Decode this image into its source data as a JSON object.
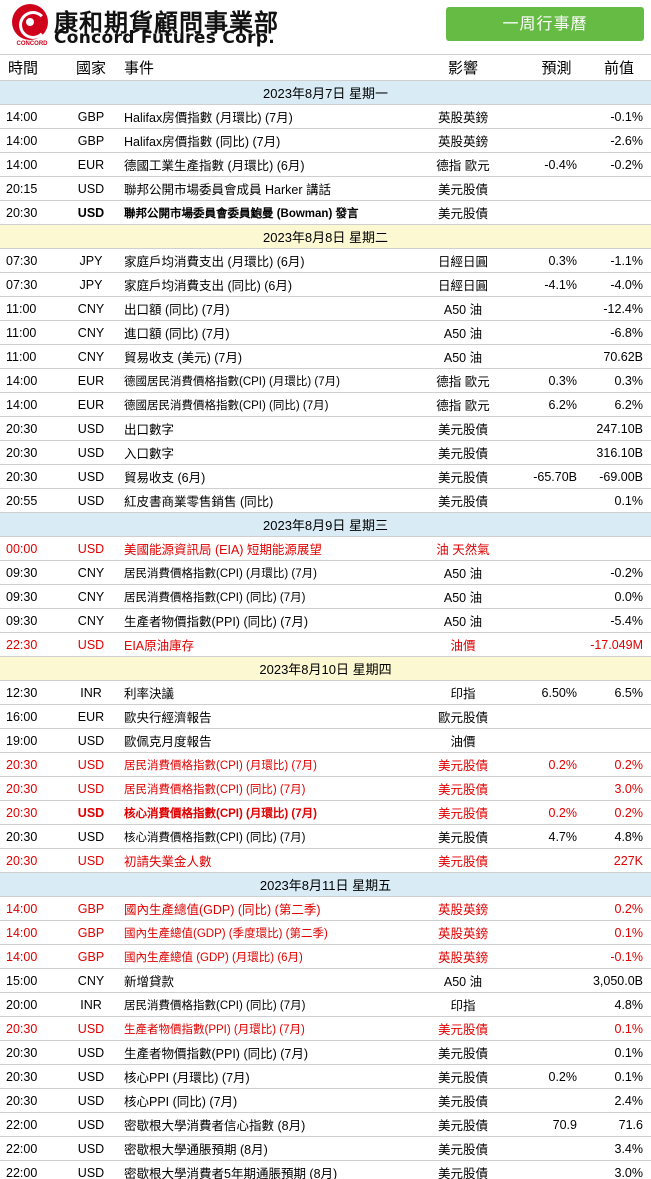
{
  "header": {
    "brand_zh": "康和期貨顧問事業部",
    "brand_en": "Concord Futures Corp.",
    "logo_text": "CONCORD",
    "week_button": "一周行事曆"
  },
  "columns": {
    "time": "時間",
    "country": "國家",
    "event": "事件",
    "impact": "影響",
    "forecast": "預測",
    "previous": "前值"
  },
  "days": [
    {
      "label": "2023年8月7日   星期一",
      "bg": "#d9ecf5",
      "rows": [
        {
          "time": "14:00",
          "country": "GBP",
          "event": "Halifax房價指數 (月環比) (7月)",
          "impact": "英股英鎊",
          "forecast": "",
          "previous": "-0.1%",
          "red": false,
          "bold": false
        },
        {
          "time": "14:00",
          "country": "GBP",
          "event": "Halifax房價指數 (同比) (7月)",
          "impact": "英股英鎊",
          "forecast": "",
          "previous": "-2.6%",
          "red": false,
          "bold": false
        },
        {
          "time": "14:00",
          "country": "EUR",
          "event": "德國工業生產指數 (月環比) (6月)",
          "impact": "德指 歐元",
          "forecast": "-0.4%",
          "previous": "-0.2%",
          "red": false,
          "bold": false
        },
        {
          "time": "20:15",
          "country": "USD",
          "event": "聯邦公開市場委員會成員 Harker 講話",
          "impact": "美元股債",
          "forecast": "",
          "previous": "",
          "red": false,
          "bold": false
        },
        {
          "time": "20:30",
          "country": "USD",
          "event": "聯邦公開市場委員會委員鮑曼 (Bowman) 發言",
          "impact": "美元股債",
          "forecast": "",
          "previous": "",
          "red": false,
          "bold": true
        }
      ]
    },
    {
      "label": "2023年8月8日   星期二",
      "bg": "#fbf8d2",
      "rows": [
        {
          "time": "07:30",
          "country": "JPY",
          "event": "家庭戶均消費支出 (月環比) (6月)",
          "impact": "日經日圓",
          "forecast": "0.3%",
          "previous": "-1.1%",
          "red": false,
          "bold": false
        },
        {
          "time": "07:30",
          "country": "JPY",
          "event": "家庭戶均消費支出 (同比) (6月)",
          "impact": "日經日圓",
          "forecast": "-4.1%",
          "previous": "-4.0%",
          "red": false,
          "bold": false
        },
        {
          "time": "11:00",
          "country": "CNY",
          "event": "出口額 (同比) (7月)",
          "impact": "A50 油",
          "forecast": "",
          "previous": "-12.4%",
          "red": false,
          "bold": false
        },
        {
          "time": "11:00",
          "country": "CNY",
          "event": "進口額 (同比) (7月)",
          "impact": "A50 油",
          "forecast": "",
          "previous": "-6.8%",
          "red": false,
          "bold": false
        },
        {
          "time": "11:00",
          "country": "CNY",
          "event": "貿易收支 (美元) (7月)",
          "impact": "A50 油",
          "forecast": "",
          "previous": "70.62B",
          "red": false,
          "bold": false
        },
        {
          "time": "14:00",
          "country": "EUR",
          "event": "德國居民消費價格指數(CPI) (月環比) (7月)",
          "impact": "德指 歐元",
          "forecast": "0.3%",
          "previous": "0.3%",
          "red": false,
          "bold": false
        },
        {
          "time": "14:00",
          "country": "EUR",
          "event": "德國居民消費價格指數(CPI) (同比) (7月)",
          "impact": "德指 歐元",
          "forecast": "6.2%",
          "previous": "6.2%",
          "red": false,
          "bold": false
        },
        {
          "time": "20:30",
          "country": "USD",
          "event": "出口數字",
          "impact": "美元股債",
          "forecast": "",
          "previous": "247.10B",
          "red": false,
          "bold": false
        },
        {
          "time": "20:30",
          "country": "USD",
          "event": "入口數字",
          "impact": "美元股債",
          "forecast": "",
          "previous": "316.10B",
          "red": false,
          "bold": false
        },
        {
          "time": "20:30",
          "country": "USD",
          "event": "貿易收支 (6月)",
          "impact": "美元股債",
          "forecast": "-65.70B",
          "previous": "-69.00B",
          "red": false,
          "bold": false
        },
        {
          "time": "20:55",
          "country": "USD",
          "event": "紅皮書商業零售銷售 (同比)",
          "impact": "美元股債",
          "forecast": "",
          "previous": "0.1%",
          "red": false,
          "bold": false
        }
      ]
    },
    {
      "label": "2023年8月9日   星期三",
      "bg": "#d9ecf5",
      "rows": [
        {
          "time": "00:00",
          "country": "USD",
          "event": "美國能源資訊局 (EIA) 短期能源展望",
          "impact": "油 天然氣",
          "forecast": "",
          "previous": "",
          "red": true,
          "bold": false
        },
        {
          "time": "09:30",
          "country": "CNY",
          "event": "居民消費價格指數(CPI) (月環比) (7月)",
          "impact": "A50 油",
          "forecast": "",
          "previous": "-0.2%",
          "red": false,
          "bold": false
        },
        {
          "time": "09:30",
          "country": "CNY",
          "event": "居民消費價格指數(CPI) (同比) (7月)",
          "impact": "A50 油",
          "forecast": "",
          "previous": "0.0%",
          "red": false,
          "bold": false
        },
        {
          "time": "09:30",
          "country": "CNY",
          "event": "生產者物價指數(PPI) (同比) (7月)",
          "impact": "A50 油",
          "forecast": "",
          "previous": "-5.4%",
          "red": false,
          "bold": false
        },
        {
          "time": "22:30",
          "country": "USD",
          "event": "EIA原油庫存",
          "impact": "油價",
          "forecast": "",
          "previous": "-17.049M",
          "red": true,
          "bold": false
        }
      ]
    },
    {
      "label": "2023年8月10日   星期四",
      "bg": "#fbf8d2",
      "rows": [
        {
          "time": "12:30",
          "country": "INR",
          "event": "利率決議",
          "impact": "印指",
          "forecast": "6.50%",
          "previous": "6.5%",
          "red": false,
          "bold": false
        },
        {
          "time": "16:00",
          "country": "EUR",
          "event": "歐央行經濟報告",
          "impact": "歐元股債",
          "forecast": "",
          "previous": "",
          "red": false,
          "bold": false
        },
        {
          "time": "19:00",
          "country": "USD",
          "event": "歐佩克月度報告",
          "impact": "油價",
          "forecast": "",
          "previous": "",
          "red": false,
          "bold": false
        },
        {
          "time": "20:30",
          "country": "USD",
          "event": "居民消費價格指數(CPI) (月環比) (7月)",
          "impact": "美元股債",
          "forecast": "0.2%",
          "previous": "0.2%",
          "red": true,
          "bold": false
        },
        {
          "time": "20:30",
          "country": "USD",
          "event": "居民消費價格指數(CPI) (同比) (7月)",
          "impact": "美元股債",
          "forecast": "",
          "previous": "3.0%",
          "red": true,
          "bold": false
        },
        {
          "time": "20:30",
          "country": "USD",
          "event": "核心消費價格指數(CPI) (月環比) (7月)",
          "impact": "美元股債",
          "forecast": "0.2%",
          "previous": "0.2%",
          "red": true,
          "bold": true
        },
        {
          "time": "20:30",
          "country": "USD",
          "event": "核心消費價格指數(CPI) (同比) (7月)",
          "impact": "美元股債",
          "forecast": "4.7%",
          "previous": "4.8%",
          "red": false,
          "bold": false
        },
        {
          "time": "20:30",
          "country": "USD",
          "event": "初請失業金人數",
          "impact": "美元股債",
          "forecast": "",
          "previous": "227K",
          "red": true,
          "bold": false
        }
      ]
    },
    {
      "label": "2023年8月11日   星期五",
      "bg": "#d9ecf5",
      "rows": [
        {
          "time": "14:00",
          "country": "GBP",
          "event": "國內生產總值(GDP) (同比) (第二季)",
          "impact": "英股英鎊",
          "forecast": "",
          "previous": "0.2%",
          "red": true,
          "bold": false
        },
        {
          "time": "14:00",
          "country": "GBP",
          "event": "國內生產總值(GDP) (季度環比) (第二季)",
          "impact": "英股英鎊",
          "forecast": "",
          "previous": "0.1%",
          "red": true,
          "bold": false
        },
        {
          "time": "14:00",
          "country": "GBP",
          "event": "國內生產總值 (GDP) (月環比) (6月)",
          "impact": "英股英鎊",
          "forecast": "",
          "previous": "-0.1%",
          "red": true,
          "bold": false
        },
        {
          "time": "15:00",
          "country": "CNY",
          "event": "新增貸款",
          "impact": "A50 油",
          "forecast": "",
          "previous": "3,050.0B",
          "red": false,
          "bold": false
        },
        {
          "time": "20:00",
          "country": "INR",
          "event": "居民消費價格指數(CPI) (同比) (7月)",
          "impact": "印指",
          "forecast": "",
          "previous": "4.8%",
          "red": false,
          "bold": false
        },
        {
          "time": "20:30",
          "country": "USD",
          "event": "生產者物價指數(PPI) (月環比) (7月)",
          "impact": "美元股債",
          "forecast": "",
          "previous": "0.1%",
          "red": true,
          "bold": false
        },
        {
          "time": "20:30",
          "country": "USD",
          "event": "生產者物價指數(PPI) (同比) (7月)",
          "impact": "美元股債",
          "forecast": "",
          "previous": "0.1%",
          "red": false,
          "bold": false
        },
        {
          "time": "20:30",
          "country": "USD",
          "event": "核心PPI (月環比) (7月)",
          "impact": "美元股債",
          "forecast": "0.2%",
          "previous": "0.1%",
          "red": false,
          "bold": false
        },
        {
          "time": "20:30",
          "country": "USD",
          "event": "核心PPI (同比) (7月)",
          "impact": "美元股債",
          "forecast": "",
          "previous": "2.4%",
          "red": false,
          "bold": false
        },
        {
          "time": "22:00",
          "country": "USD",
          "event": "密歇根大學消費者信心指數 (8月)",
          "impact": "美元股債",
          "forecast": "70.9",
          "previous": "71.6",
          "red": false,
          "bold": false
        },
        {
          "time": "22:00",
          "country": "USD",
          "event": "密歇根大學通脹預期 (8月)",
          "impact": "美元股債",
          "forecast": "",
          "previous": "3.4%",
          "red": false,
          "bold": false
        },
        {
          "time": "22:00",
          "country": "USD",
          "event": "密歇根大學消費者5年期通脹預期 (8月)",
          "impact": "美元股債",
          "forecast": "",
          "previous": "3.0%",
          "red": false,
          "bold": false
        }
      ]
    }
  ]
}
